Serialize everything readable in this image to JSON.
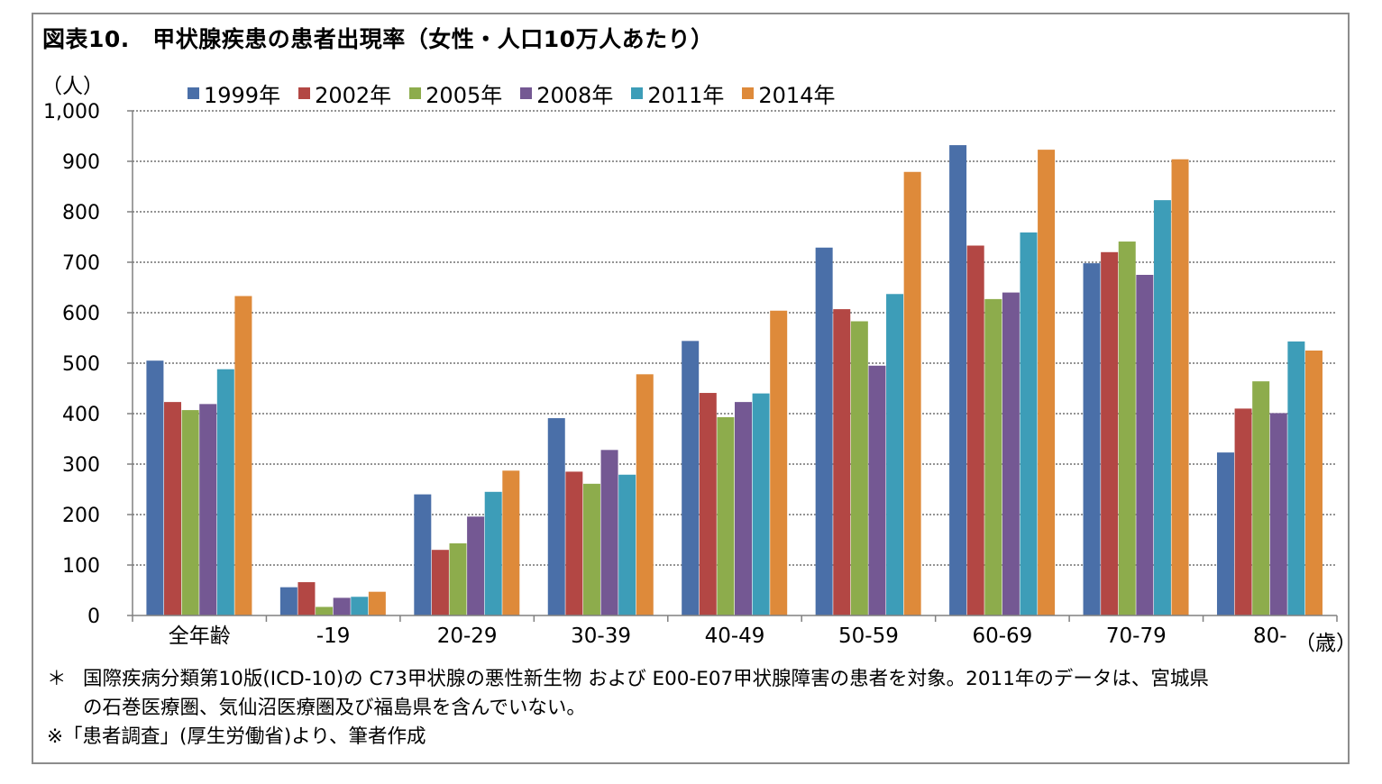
{
  "title": "図表10.　甲状腺疾患の患者出現率（女性・人口10万人あたり）",
  "unit_label": "（人）",
  "x_unit_label": "（歳）",
  "notes": {
    "line1_mark": "＊",
    "line1": "国際疾病分類第10版(ICD-10)の C73甲状腺の悪性新生物 および E00-E07甲状腺障害の患者を対象。2011年のデータは、宮城県",
    "line2": "の石巻医療圏、気仙沼医療圏及び福島県を含んでいない。",
    "line3": "※「患者調査」(厚生労働省)より、筆者作成"
  },
  "chart_data": {
    "type": "bar",
    "title": "図表10.　甲状腺疾患の患者出現率（女性・人口10万人あたり）",
    "ylabel": "（人）",
    "xlabel": "（歳）",
    "ylim": [
      0,
      1000
    ],
    "yticks": [
      0,
      100,
      200,
      300,
      400,
      500,
      600,
      700,
      800,
      900,
      1000
    ],
    "ytick_labels": [
      "0",
      "100",
      "200",
      "300",
      "400",
      "500",
      "600",
      "700",
      "800",
      "900",
      "1,000"
    ],
    "grid": "horizontal dotted",
    "legend_position": "top",
    "categories": [
      "全年齢",
      "-19",
      "20-29",
      "30-39",
      "40-49",
      "50-59",
      "60-69",
      "70-79",
      "80-"
    ],
    "series": [
      {
        "name": "1999年",
        "color": "#4a6fa8",
        "values": [
          505,
          56,
          240,
          391,
          544,
          729,
          932,
          698,
          323
        ]
      },
      {
        "name": "2002年",
        "color": "#b34744",
        "values": [
          423,
          66,
          130,
          285,
          441,
          607,
          733,
          720,
          410
        ]
      },
      {
        "name": "2005年",
        "color": "#8dac4c",
        "values": [
          407,
          17,
          143,
          261,
          393,
          583,
          627,
          741,
          464
        ]
      },
      {
        "name": "2008年",
        "color": "#745893",
        "values": [
          419,
          35,
          196,
          328,
          423,
          495,
          640,
          675,
          401
        ]
      },
      {
        "name": "2011年",
        "color": "#3d9db8",
        "values": [
          488,
          37,
          245,
          279,
          440,
          637,
          759,
          823,
          543
        ]
      },
      {
        "name": "2014年",
        "color": "#de8a3a",
        "values": [
          633,
          47,
          287,
          478,
          604,
          879,
          923,
          904,
          525
        ]
      }
    ]
  }
}
